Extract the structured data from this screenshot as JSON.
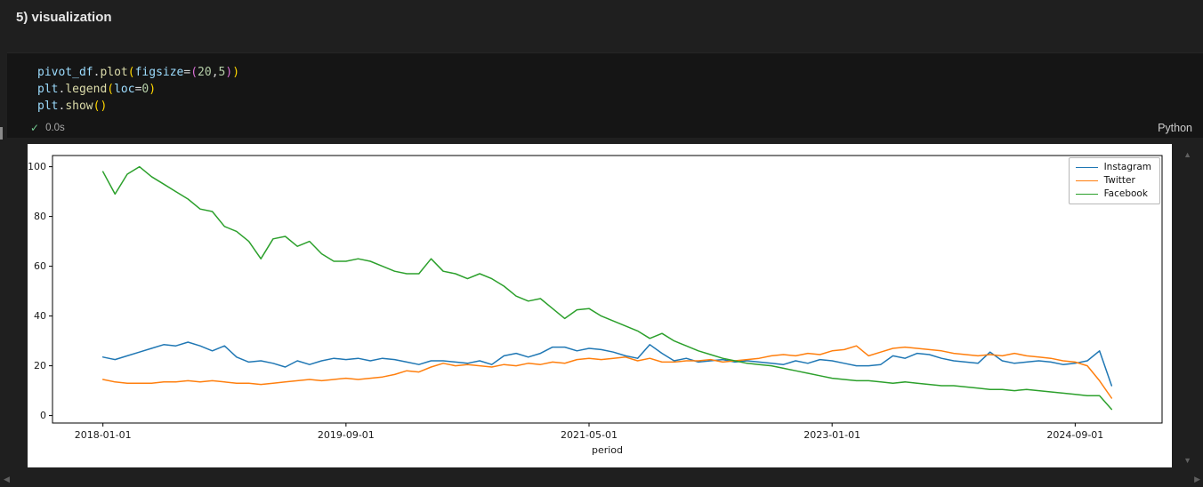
{
  "header": {
    "title": "5) visualization"
  },
  "code_cell": {
    "lines": [
      {
        "tokens": [
          {
            "text": "pivot_df",
            "color": "#9CDCFE"
          },
          {
            "text": ".",
            "color": "#D4D4D4"
          },
          {
            "text": "plot",
            "color": "#DCDCAA"
          },
          {
            "text": "(",
            "color": "#FFD700"
          },
          {
            "text": "figsize",
            "color": "#9CDCFE"
          },
          {
            "text": "=",
            "color": "#D4D4D4"
          },
          {
            "text": "(",
            "color": "#DA70D6"
          },
          {
            "text": "20",
            "color": "#B5CEA8"
          },
          {
            "text": ",",
            "color": "#D4D4D4"
          },
          {
            "text": "5",
            "color": "#B5CEA8"
          },
          {
            "text": ")",
            "color": "#DA70D6"
          },
          {
            "text": ")",
            "color": "#FFD700"
          }
        ]
      },
      {
        "tokens": [
          {
            "text": "plt",
            "color": "#9CDCFE"
          },
          {
            "text": ".",
            "color": "#D4D4D4"
          },
          {
            "text": "legend",
            "color": "#DCDCAA"
          },
          {
            "text": "(",
            "color": "#FFD700"
          },
          {
            "text": "loc",
            "color": "#9CDCFE"
          },
          {
            "text": "=",
            "color": "#D4D4D4"
          },
          {
            "text": "0",
            "color": "#B5CEA8"
          },
          {
            "text": ")",
            "color": "#FFD700"
          }
        ]
      },
      {
        "tokens": [
          {
            "text": "plt",
            "color": "#9CDCFE"
          },
          {
            "text": ".",
            "color": "#D4D4D4"
          },
          {
            "text": "show",
            "color": "#DCDCAA"
          },
          {
            "text": "(",
            "color": "#FFD700"
          },
          {
            "text": ")",
            "color": "#FFD700"
          }
        ]
      }
    ],
    "status": {
      "success_icon": "✓",
      "duration": "0.0s",
      "language": "Python"
    }
  },
  "icons": {
    "up": "▲",
    "down": "▼",
    "left": "◀",
    "right": "▶"
  },
  "chart_data": {
    "type": "line",
    "title": "",
    "xlabel": "period",
    "ylabel": "",
    "x_tick_positions": [
      0,
      20,
      40,
      60,
      80
    ],
    "x_tick_labels": [
      "2018-01-01",
      "2019-09-01",
      "2021-05-01",
      "2023-01-01",
      "2024-09-01"
    ],
    "y_ticks": [
      0,
      20,
      40,
      60,
      80,
      100
    ],
    "ylim": [
      -3,
      104.5
    ],
    "grid": false,
    "legend_position": "upper right",
    "series": [
      {
        "name": "Instagram",
        "color": "#1f77b4",
        "values": [
          23.5,
          22.5,
          24,
          25.5,
          27,
          28.5,
          28,
          29.5,
          28,
          26,
          28,
          23.5,
          21.5,
          22,
          21,
          19.5,
          22,
          20.5,
          22,
          23,
          22.5,
          23,
          22,
          23,
          22.5,
          21.5,
          20.5,
          22,
          22,
          21.5,
          21,
          22,
          20.5,
          24,
          25,
          23.5,
          25,
          27.5,
          27.5,
          26,
          27,
          26.5,
          25.5,
          24,
          23,
          28.5,
          25,
          22,
          23,
          21.5,
          22,
          22.5,
          21.5,
          22,
          21.5,
          21,
          20.5,
          22,
          21,
          22.5,
          22,
          21,
          20,
          20,
          20.5,
          24,
          23,
          25,
          24.5,
          23,
          22,
          21.5,
          21,
          25.5,
          22,
          21,
          21.5,
          22,
          21.5,
          20.5,
          21,
          22,
          26,
          12
        ]
      },
      {
        "name": "Twitter",
        "color": "#ff7f0e",
        "values": [
          14.5,
          13.5,
          13,
          13,
          13,
          13.5,
          13.5,
          14,
          13.5,
          14,
          13.5,
          13,
          13,
          12.5,
          13,
          13.5,
          14,
          14.5,
          14,
          14.5,
          15,
          14.5,
          15,
          15.5,
          16.5,
          18,
          17.5,
          19.5,
          21,
          20,
          20.5,
          20,
          19.5,
          20.5,
          20,
          21,
          20.5,
          21.5,
          21,
          22.5,
          23,
          22.5,
          23,
          23.5,
          22,
          23,
          21.5,
          21.5,
          22,
          22,
          22.5,
          21.5,
          22,
          22.5,
          23,
          24,
          24.5,
          24,
          25,
          24.5,
          26,
          26.5,
          28,
          24,
          25.5,
          27,
          27.5,
          27,
          26.5,
          26,
          25,
          24.5,
          24,
          24.5,
          24,
          25,
          24,
          23.5,
          23,
          22,
          21.5,
          20,
          14,
          7
        ]
      },
      {
        "name": "Facebook",
        "color": "#2ca02c",
        "values": [
          98,
          89,
          97,
          100,
          96,
          93,
          90,
          87,
          83,
          82,
          76,
          74,
          70,
          63,
          71,
          72,
          68,
          70,
          65,
          62,
          62,
          63,
          62,
          60,
          58,
          57,
          57,
          63,
          58,
          57,
          55,
          57,
          55,
          52,
          48,
          46,
          47,
          43,
          39,
          42.5,
          43,
          40,
          38,
          36,
          34,
          31,
          33,
          30,
          28,
          26,
          24.5,
          23,
          22,
          21,
          20.5,
          20,
          19,
          18,
          17,
          16,
          15,
          14.5,
          14,
          14,
          13.5,
          13,
          13.5,
          13,
          12.5,
          12,
          12,
          11.5,
          11,
          10.5,
          10.5,
          10,
          10.5,
          10,
          9.5,
          9,
          8.5,
          8,
          8,
          2.5
        ]
      }
    ]
  }
}
